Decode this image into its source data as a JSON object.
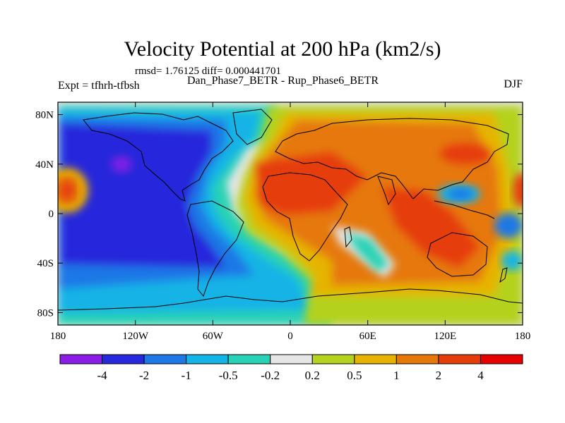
{
  "title": "Velocity Potential at 200 hPa (km2/s)",
  "stats_line": "rmsd= 1.76125 diff= 0.000441701",
  "experiment_label": "Expt = tfhrh-tfbsh",
  "comparison_label": "Dan_Phase7_BETR - Rup_Phase6_BETR",
  "season_label": "DJF",
  "map": {
    "projection": "cylindrical-equidistant",
    "lon_range": [
      -180,
      180
    ],
    "lat_range": [
      -90,
      90
    ],
    "x_tick_labels": [
      "180",
      "120W",
      "60W",
      "0",
      "60E",
      "120E",
      "180"
    ],
    "y_tick_labels": [
      "80N",
      "40N",
      "0",
      "40S",
      "80S"
    ],
    "field_summary": [
      {
        "region": "Pacific / Americas / Atlantic",
        "sign": "negative",
        "min_approx": -4
      },
      {
        "region": "Africa / Eurasia / Indian Ocean / Australia",
        "sign": "positive",
        "max_approx": 4
      }
    ]
  },
  "colorbar": {
    "labels": [
      "-4",
      "-2",
      "-1",
      "-0.5",
      "-0.2",
      "0.2",
      "0.5",
      "1",
      "2",
      "4"
    ],
    "colors": [
      "#8a1ee6",
      "#2828dc",
      "#1e78e6",
      "#14b4e6",
      "#28d2b4",
      "#e6e6e6",
      "#b4d21e",
      "#e6b400",
      "#e6780a",
      "#e63c0a",
      "#e60000"
    ]
  },
  "colors": {
    "background": "#ffffff",
    "land_outline": "#000000",
    "neutral": "#e6e6e6"
  }
}
